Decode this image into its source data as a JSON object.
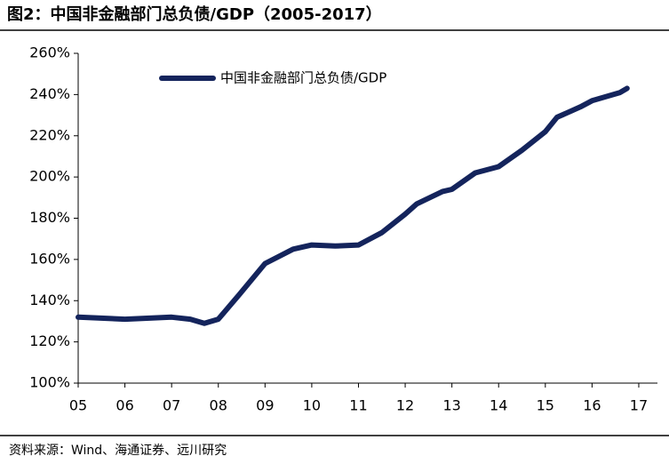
{
  "chart_data": {
    "type": "line",
    "title": "图2：中国非金融部门总负债/GDP（2005-2017）",
    "source": "资料来源：Wind、海通证券、远川研究",
    "x": [
      2005,
      2006,
      2007,
      2007.4,
      2007.7,
      2008,
      2008.45,
      2009,
      2009.6,
      2010,
      2010.5,
      2011,
      2011.5,
      2012,
      2012.25,
      2012.8,
      2013,
      2013.5,
      2014,
      2014.5,
      2015,
      2015.25,
      2015.75,
      2016,
      2016.6,
      2016.75
    ],
    "series": [
      {
        "name": "中国非金融部门总负债/GDP",
        "color": "#14245c",
        "values": [
          132,
          131,
          132,
          131,
          129,
          131,
          143,
          158,
          165,
          167,
          166.5,
          167,
          173,
          182,
          187,
          193,
          194,
          202,
          205,
          213,
          222,
          229,
          234,
          237,
          241,
          243
        ]
      }
    ],
    "xlim": [
      2005,
      2017.4
    ],
    "xticks": [
      {
        "value": 2005,
        "label": "05"
      },
      {
        "value": 2006,
        "label": "06"
      },
      {
        "value": 2007,
        "label": "07"
      },
      {
        "value": 2008,
        "label": "08"
      },
      {
        "value": 2009,
        "label": "09"
      },
      {
        "value": 2010,
        "label": "10"
      },
      {
        "value": 2011,
        "label": "11"
      },
      {
        "value": 2012,
        "label": "12"
      },
      {
        "value": 2013,
        "label": "13"
      },
      {
        "value": 2014,
        "label": "14"
      },
      {
        "value": 2015,
        "label": "15"
      },
      {
        "value": 2016,
        "label": "16"
      },
      {
        "value": 2017,
        "label": "17"
      }
    ],
    "ylim": [
      100,
      260
    ],
    "yticks": [
      {
        "value": 100,
        "label": "100%"
      },
      {
        "value": 120,
        "label": "120%"
      },
      {
        "value": 140,
        "label": "140%"
      },
      {
        "value": 160,
        "label": "160%"
      },
      {
        "value": 180,
        "label": "180%"
      },
      {
        "value": 200,
        "label": "200%"
      },
      {
        "value": 220,
        "label": "220%"
      },
      {
        "value": 240,
        "label": "240%"
      },
      {
        "value": 260,
        "label": "260%"
      }
    ],
    "grid": false
  }
}
